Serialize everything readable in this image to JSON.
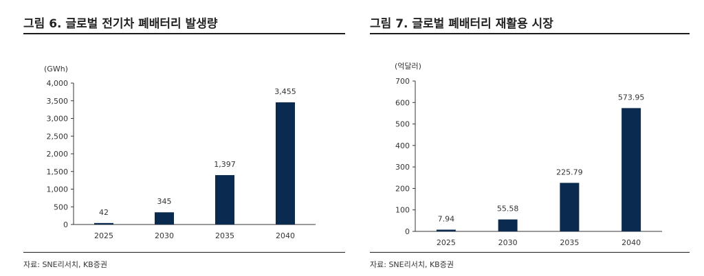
{
  "chart_data": [
    {
      "type": "bar",
      "title": "그림 6. 글로벌 전기차 폐배터리 발생량",
      "unit": "(GWh)",
      "categories": [
        "2025",
        "2030",
        "2035",
        "2040"
      ],
      "values": [
        42,
        345,
        1397,
        3455
      ],
      "value_labels": [
        "42",
        "345",
        "1,397",
        "3,455"
      ],
      "ylim": [
        0,
        4000
      ],
      "yticks": [
        0,
        500,
        1000,
        1500,
        2000,
        2500,
        3000,
        3500,
        4000
      ],
      "ytick_labels": [
        "0",
        "500",
        "1,000",
        "1,500",
        "2,000",
        "2,500",
        "3,000",
        "3,500",
        "4,000"
      ],
      "bar_color": "#0b2a50",
      "source": "자료: SNE리서치, KB증권"
    },
    {
      "type": "bar",
      "title": "그림 7. 글로벌 폐배터리 재활용 시장",
      "unit": "(억달러)",
      "categories": [
        "2025",
        "2030",
        "2035",
        "2040"
      ],
      "values": [
        7.94,
        55.58,
        225.79,
        573.95
      ],
      "value_labels": [
        "7.94",
        "55.58",
        "225.79",
        "573.95"
      ],
      "ylim": [
        0,
        700
      ],
      "yticks": [
        0,
        100,
        200,
        300,
        400,
        500,
        600,
        700
      ],
      "ytick_labels": [
        "0",
        "100",
        "200",
        "300",
        "400",
        "500",
        "600",
        "700"
      ],
      "bar_color": "#0b2a50",
      "source": "자료: SNE리서치, KB증권"
    }
  ]
}
